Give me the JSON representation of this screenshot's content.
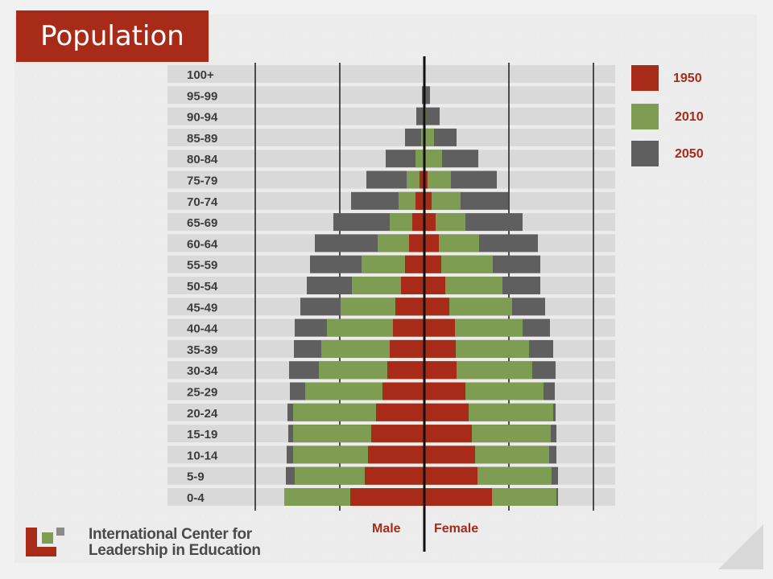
{
  "slide": {
    "title": "Population"
  },
  "legend": {
    "items": [
      {
        "label": "1950",
        "color": "#a82a18"
      },
      {
        "label": "2010",
        "color": "#7e9c52"
      },
      {
        "label": "2050",
        "color": "#5f5f5f"
      }
    ]
  },
  "axis": {
    "male_label": "Male",
    "female_label": "Female"
  },
  "logo": {
    "line1": "International Center for",
    "line2": "Leadership in Education"
  },
  "chart_data": {
    "type": "bar",
    "orientation": "horizontal-population-pyramid",
    "grid": true,
    "categories": [
      "100+",
      "95-99",
      "90-94",
      "85-89",
      "80-84",
      "75-79",
      "70-74",
      "65-69",
      "60-64",
      "55-59",
      "50-54",
      "45-49",
      "40-44",
      "35-39",
      "30-34",
      "25-29",
      "20-24",
      "15-19",
      "10-14",
      "5-9",
      "0-4"
    ],
    "xlim": [
      -210,
      210
    ],
    "series": [
      {
        "name": "2050",
        "color": "#5f5f5f",
        "male": [
          0,
          3,
          10,
          24,
          48,
          72,
          91,
          113,
          136,
          142,
          146,
          154,
          161,
          162,
          168,
          167,
          170,
          169,
          171,
          172,
          174
        ],
        "female": [
          0,
          7,
          19,
          40,
          67,
          90,
          104,
          122,
          141,
          144,
          144,
          150,
          156,
          160,
          163,
          162,
          163,
          164,
          164,
          166,
          166
        ]
      },
      {
        "name": "2010",
        "color": "#7e9c52",
        "male": [
          0,
          0,
          1,
          4,
          11,
          22,
          32,
          43,
          58,
          78,
          90,
          104,
          121,
          128,
          131,
          148,
          163,
          163,
          163,
          161,
          174
        ],
        "female": [
          0,
          0,
          2,
          12,
          22,
          33,
          45,
          51,
          68,
          85,
          97,
          109,
          122,
          130,
          134,
          148,
          160,
          157,
          155,
          158,
          164
        ]
      },
      {
        "name": "1950",
        "color": "#a82a18",
        "male": [
          0,
          0,
          0,
          0,
          0,
          6,
          11,
          15,
          19,
          24,
          29,
          36,
          39,
          43,
          46,
          52,
          60,
          66,
          70,
          74,
          92
        ],
        "female": [
          0,
          0,
          0,
          0,
          0,
          4,
          9,
          14,
          18,
          21,
          26,
          31,
          38,
          39,
          40,
          51,
          55,
          59,
          63,
          66,
          84
        ]
      }
    ]
  }
}
